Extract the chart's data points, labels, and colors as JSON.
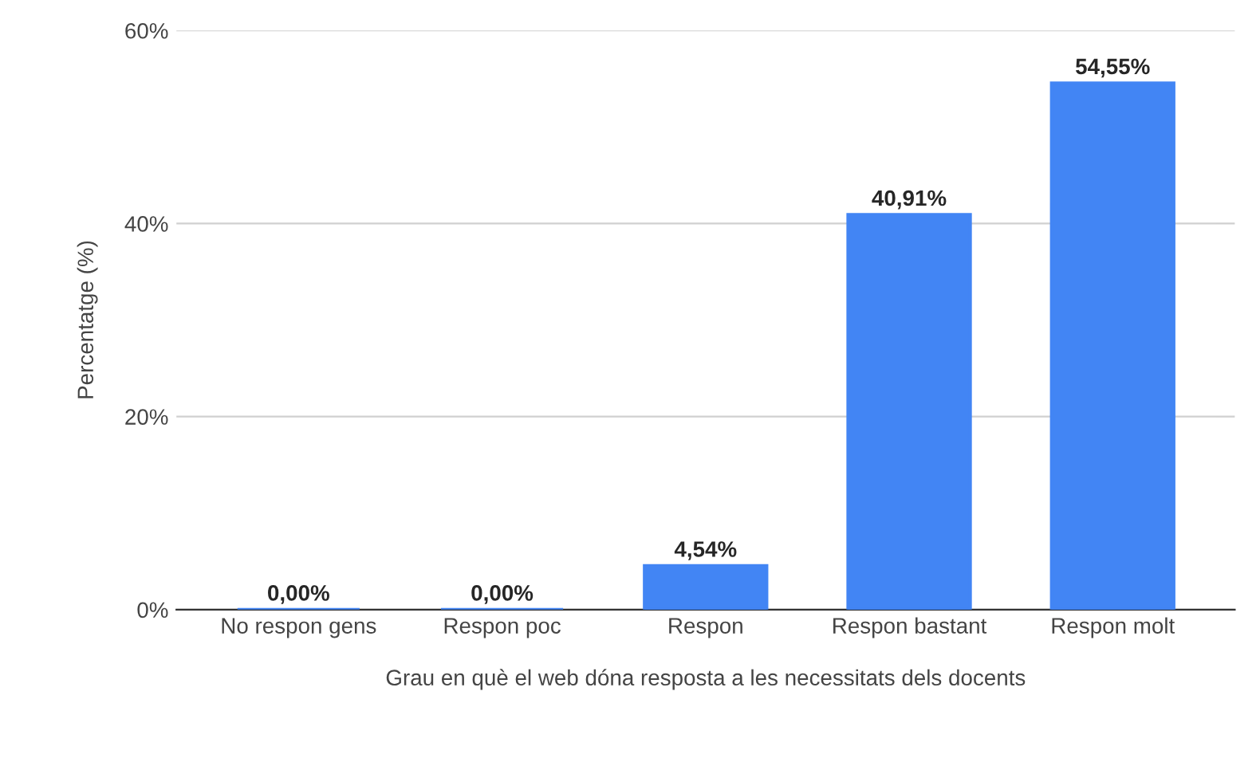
{
  "chart_data": {
    "type": "bar",
    "xlabel": "Grau en què el web dóna resposta a les necessitats dels docents",
    "ylabel": "Percentatge (%)",
    "categories": [
      "No respon gens",
      "Respon poc",
      "Respon",
      "Respon bastant",
      "Respon molt"
    ],
    "values": [
      0,
      0,
      4.54,
      40.91,
      54.55
    ],
    "value_labels": [
      "0,00%",
      "0,00%",
      "4,54%",
      "40,91%",
      "54,55%"
    ],
    "color": "#4285f4",
    "ylim": [
      0,
      60
    ],
    "yticks": [
      {
        "value": 0,
        "label": "0%"
      },
      {
        "value": 20,
        "label": "20%"
      },
      {
        "value": 40,
        "label": "40%"
      },
      {
        "value": 60,
        "label": "60%"
      }
    ],
    "grid": "y"
  }
}
